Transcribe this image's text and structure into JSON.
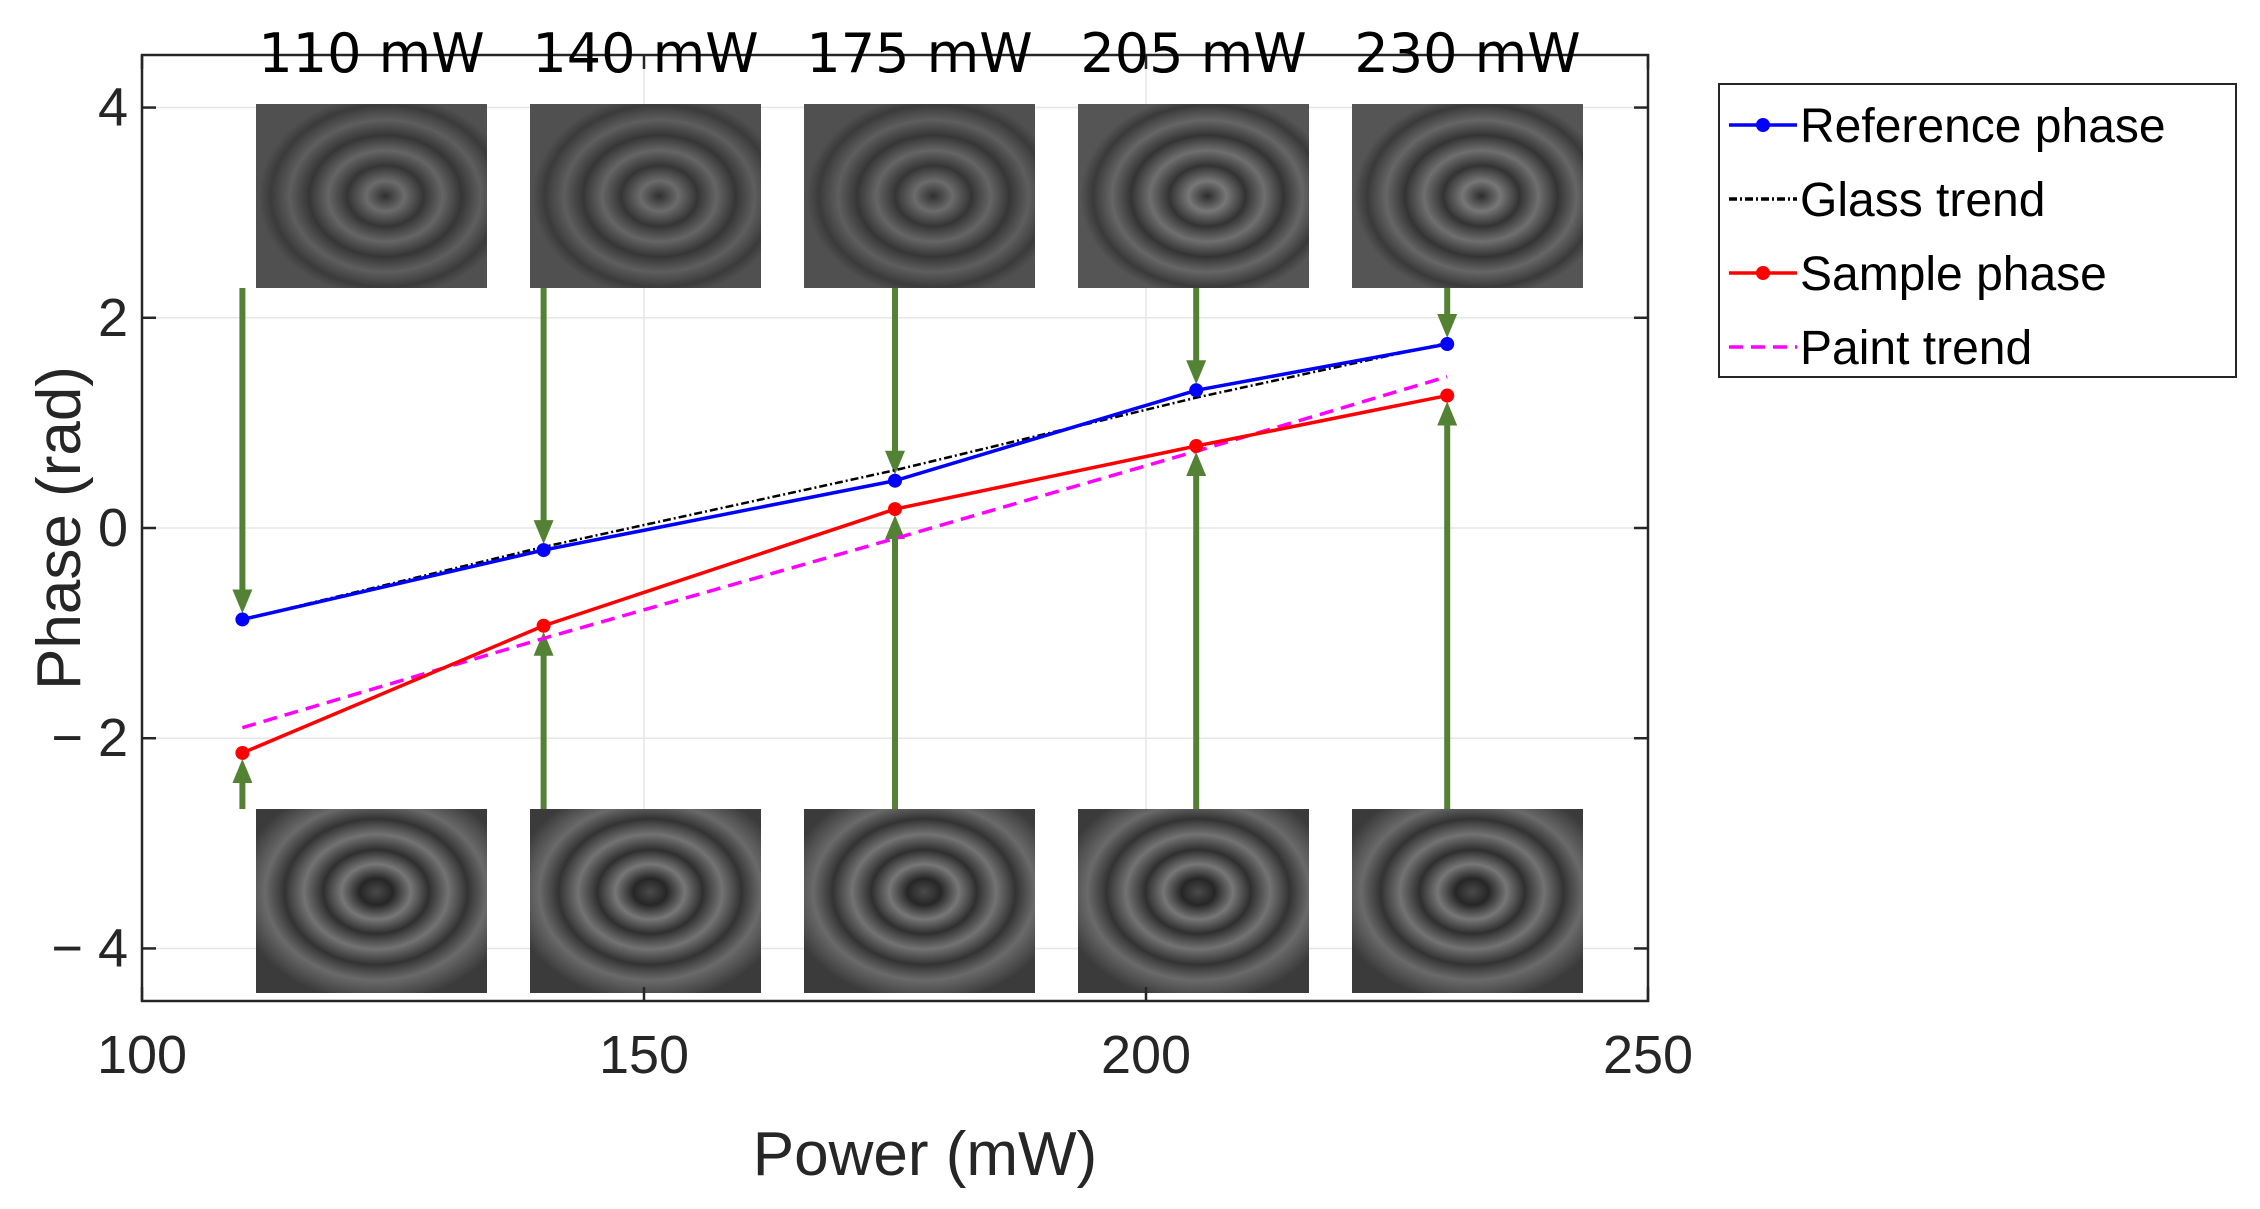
{
  "chart_data": {
    "type": "line",
    "xlabel": "Power (mW)",
    "ylabel": "Phase (rad)",
    "xlim": [
      100,
      250
    ],
    "ylim": [
      -4.5,
      4.5
    ],
    "x_ticks": [
      "100",
      "150",
      "200",
      "250"
    ],
    "y_ticks": [
      "4",
      "2",
      "0",
      "− 2",
      "− 4"
    ],
    "x": [
      110,
      140,
      175,
      205,
      230
    ],
    "grid": true,
    "legend_position": "outside-top-right",
    "series": [
      {
        "name": "Reference phase",
        "values": [
          -0.87,
          -0.21,
          0.45,
          1.31,
          1.75
        ],
        "color": "#0000ff",
        "style": "solid-markers"
      },
      {
        "name": "Glass trend",
        "values": [
          -0.87,
          -0.18,
          0.55,
          1.24,
          1.76
        ],
        "color": "#000000",
        "style": "dash-dot"
      },
      {
        "name": "Sample phase",
        "values": [
          -2.14,
          -0.93,
          0.18,
          0.78,
          1.26
        ],
        "color": "#ff0000",
        "style": "solid-markers"
      },
      {
        "name": "Paint trend",
        "values": [
          -1.9,
          -1.05,
          -0.1,
          0.73,
          1.44
        ],
        "color": "#ff00ff",
        "style": "dashed"
      }
    ],
    "power_labels": [
      "110 mW",
      "140 mW",
      "175 mW",
      "205 mW",
      "230 mW"
    ],
    "arrow_color": "#548235"
  }
}
